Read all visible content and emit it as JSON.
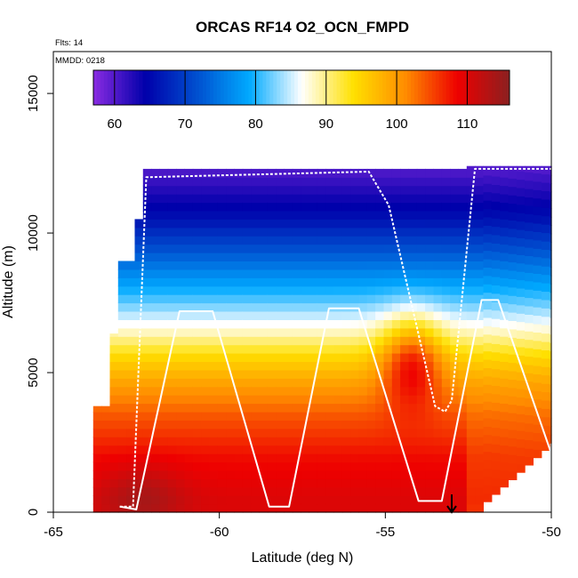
{
  "chart_data": {
    "type": "heatmap",
    "title": "ORCAS RF14 O2_OCN_FMPD",
    "subtitle_flights": "Flts: 14",
    "subtitle_date": "MMDD: 0218",
    "xlabel": "Latitude (deg N)",
    "ylabel": "Altitude (m)",
    "xlim": [
      -65,
      -50
    ],
    "ylim": [
      0,
      16500
    ],
    "x_ticks": [
      -65,
      -60,
      -55,
      -50
    ],
    "x_tick_labels": [
      "-65",
      "-60",
      "-55",
      "-50"
    ],
    "y_ticks": [
      0,
      5000,
      10000,
      15000
    ],
    "y_tick_labels": [
      "0",
      "5000",
      "10000",
      "15000"
    ],
    "colorbar": {
      "range": [
        57,
        116
      ],
      "ticks": [
        60,
        70,
        80,
        90,
        100,
        110
      ],
      "tick_labels": [
        "60",
        "70",
        "80",
        "90",
        "100",
        "110"
      ],
      "colors": [
        "#8a2be2",
        "#0000aa",
        "#0050d0",
        "#00aaff",
        "#ffffff",
        "#ffe000",
        "#ff8c00",
        "#ee0000",
        "#8b2020"
      ]
    },
    "grid": false,
    "field_description": {
      "rows": [
        {
          "alt": 12300,
          "value": 60
        },
        {
          "alt": 10500,
          "value": 66
        },
        {
          "alt": 9000,
          "value": 74
        },
        {
          "alt": 7500,
          "value": 82
        },
        {
          "alt": 6500,
          "value": 88
        },
        {
          "alt": 5500,
          "value": 95
        },
        {
          "alt": 4500,
          "value": 100
        },
        {
          "alt": 3500,
          "value": 104
        },
        {
          "alt": 2000,
          "value": 108
        },
        {
          "alt": 500,
          "value": 110
        }
      ]
    },
    "flight_track": [
      [
        -63.0,
        200
      ],
      [
        -62.6,
        200
      ],
      [
        -62.2,
        12000
      ],
      [
        -55.5,
        12200
      ],
      [
        -54.9,
        11000
      ],
      [
        -53.5,
        3800
      ],
      [
        -53.2,
        3600
      ],
      [
        -53.0,
        4000
      ],
      [
        -52.3,
        12300
      ],
      [
        -50.0,
        12300
      ]
    ],
    "profile_track": [
      [
        -63.0,
        200
      ],
      [
        -62.5,
        100
      ],
      [
        -61.2,
        7200
      ],
      [
        -60.2,
        7200
      ],
      [
        -58.5,
        200
      ],
      [
        -57.9,
        200
      ],
      [
        -56.7,
        7300
      ],
      [
        -55.8,
        7300
      ],
      [
        -54.0,
        400
      ],
      [
        -53.3,
        400
      ],
      [
        -52.1,
        7600
      ],
      [
        -51.6,
        7600
      ],
      [
        -50.0,
        2100
      ]
    ],
    "marker": {
      "lat": -53.0,
      "alt": 0,
      "symbol": "down-arrow"
    }
  }
}
